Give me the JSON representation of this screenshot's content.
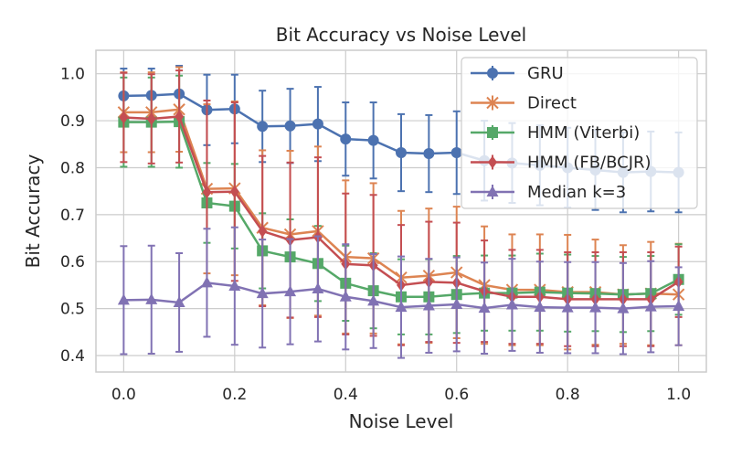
{
  "chart_data": {
    "type": "line",
    "title": "Bit Accuracy vs Noise Level",
    "xlabel": "Noise Level",
    "ylabel": "Bit Accuracy",
    "xlim": [
      -0.05,
      1.05
    ],
    "ylim": [
      0.365,
      1.05
    ],
    "xticks": [
      0.0,
      0.2,
      0.4,
      0.6,
      0.8,
      1.0
    ],
    "xtick_labels": [
      "0.0",
      "0.2",
      "0.4",
      "0.6",
      "0.8",
      "1.0"
    ],
    "yticks": [
      0.4,
      0.5,
      0.6,
      0.7,
      0.8,
      0.9,
      1.0
    ],
    "ytick_labels": [
      "0.4",
      "0.5",
      "0.6",
      "0.7",
      "0.8",
      "0.9",
      "1.0"
    ],
    "grid": true,
    "legend_position": "top-right",
    "x": [
      0.0,
      0.05,
      0.1,
      0.15,
      0.2,
      0.25,
      0.3,
      0.35,
      0.4,
      0.45,
      0.5,
      0.55,
      0.6,
      0.65,
      0.7,
      0.75,
      0.8,
      0.85,
      0.9,
      0.95,
      1.0
    ],
    "series": [
      {
        "name": "GRU",
        "color": "#4c72b0",
        "marker": "circle",
        "values": [
          0.953,
          0.954,
          0.957,
          0.923,
          0.925,
          0.888,
          0.889,
          0.893,
          0.861,
          0.858,
          0.832,
          0.83,
          0.832,
          0.815,
          0.81,
          0.805,
          0.8,
          0.795,
          0.79,
          0.792,
          0.79
        ],
        "errors": [
          0.058,
          0.057,
          0.06,
          0.075,
          0.073,
          0.076,
          0.079,
          0.079,
          0.078,
          0.081,
          0.082,
          0.082,
          0.088,
          0.085,
          0.085,
          0.085,
          0.085,
          0.085,
          0.085,
          0.085,
          0.085
        ]
      },
      {
        "name": "Direct",
        "color": "#dd8452",
        "marker": "x",
        "values": [
          0.918,
          0.918,
          0.924,
          0.755,
          0.756,
          0.672,
          0.658,
          0.665,
          0.61,
          0.607,
          0.566,
          0.57,
          0.577,
          0.55,
          0.54,
          0.54,
          0.535,
          0.535,
          0.53,
          0.532,
          0.53
        ],
        "errors": [
          0.085,
          0.085,
          0.09,
          0.18,
          0.185,
          0.165,
          0.178,
          0.18,
          0.163,
          0.16,
          0.142,
          0.143,
          0.14,
          0.125,
          0.118,
          0.118,
          0.122,
          0.112,
          0.105,
          0.11,
          0.108
        ]
      },
      {
        "name": "HMM (Viterbi)",
        "color": "#55a868",
        "marker": "square",
        "values": [
          0.897,
          0.897,
          0.898,
          0.725,
          0.718,
          0.623,
          0.61,
          0.596,
          0.554,
          0.538,
          0.525,
          0.525,
          0.53,
          0.533,
          0.533,
          0.535,
          0.533,
          0.532,
          0.53,
          0.532,
          0.562
        ],
        "errors": [
          0.095,
          0.095,
          0.098,
          0.085,
          0.09,
          0.08,
          0.08,
          0.08,
          0.08,
          0.08,
          0.08,
          0.08,
          0.082,
          0.08,
          0.08,
          0.082,
          0.082,
          0.08,
          0.08,
          0.08,
          0.075
        ]
      },
      {
        "name": "HMM (FB/BCJR)",
        "color": "#c44e52",
        "marker": "diamond",
        "values": [
          0.907,
          0.904,
          0.909,
          0.748,
          0.749,
          0.665,
          0.646,
          0.652,
          0.595,
          0.592,
          0.55,
          0.557,
          0.555,
          0.537,
          0.525,
          0.525,
          0.52,
          0.52,
          0.52,
          0.52,
          0.557
        ],
        "errors": [
          0.095,
          0.095,
          0.098,
          0.195,
          0.19,
          0.16,
          0.165,
          0.17,
          0.15,
          0.15,
          0.128,
          0.128,
          0.128,
          0.108,
          0.1,
          0.1,
          0.1,
          0.1,
          0.1,
          0.1,
          0.075
        ]
      },
      {
        "name": "Median k=3",
        "color": "#8172b3",
        "marker": "triangle",
        "values": [
          0.518,
          0.519,
          0.513,
          0.555,
          0.548,
          0.532,
          0.536,
          0.542,
          0.525,
          0.516,
          0.503,
          0.506,
          0.509,
          0.501,
          0.508,
          0.503,
          0.502,
          0.502,
          0.5,
          0.504,
          0.505
        ],
        "errors": [
          0.115,
          0.115,
          0.105,
          0.115,
          0.125,
          0.115,
          0.112,
          0.112,
          0.112,
          0.1,
          0.108,
          0.1,
          0.1,
          0.097,
          0.098,
          0.097,
          0.097,
          0.097,
          0.097,
          0.097,
          0.083
        ]
      }
    ]
  }
}
